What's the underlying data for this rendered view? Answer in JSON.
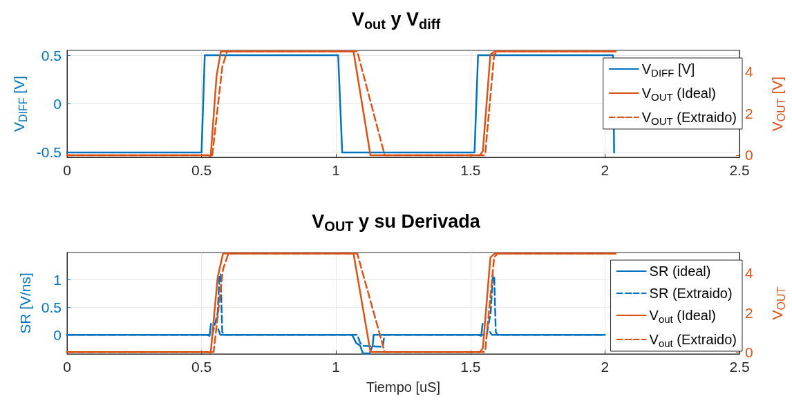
{
  "chart_data": [
    {
      "type": "line",
      "title": "V$_{out}$ y V$_{diff}$",
      "ylabel": "V$_{DIFF}$ [V]",
      "y2label": "V$_{OUT}$ [V]",
      "xlim": [
        0,
        2.5
      ],
      "xticks": [
        0,
        0.5,
        1,
        1.5,
        2,
        2.5
      ],
      "ylim": [
        -0.55,
        0.55
      ],
      "yticks": [
        -0.5,
        0,
        0.5
      ],
      "y2lim": [
        -0.1,
        5
      ],
      "y2ticks": [
        0,
        2,
        4
      ],
      "grid": true,
      "legend": "right",
      "series": [
        {
          "name": "V$_{DIFF}$ [V]",
          "color": "#0072bd",
          "axis": "y",
          "x": [
            0,
            0.5,
            0.512,
            1.008,
            1.023,
            1.515,
            1.528,
            2.03,
            2.034
          ],
          "values": [
            -0.5,
            -0.5,
            0.5,
            0.5,
            -0.5,
            -0.5,
            0.5,
            0.5,
            -0.5
          ]
        },
        {
          "name": "V$_{OUT}$ (Ideal)",
          "color": "#d95319",
          "axis": "y2",
          "x": [
            0,
            0.525,
            0.534,
            0.556,
            0.572,
            1.065,
            1.128,
            1.14,
            1.535,
            1.546,
            1.574,
            1.59,
            2.04
          ],
          "values": [
            0,
            0,
            -0.05,
            3.8,
            4.95,
            4.95,
            0,
            0,
            0,
            0.2,
            4.8,
            4.95,
            4.95
          ]
        },
        {
          "name": "V$_{OUT}$ (Extraido)",
          "color": "#d95319",
          "axis": "y2",
          "line_style": "dashed",
          "x": [
            0,
            0.53,
            0.54,
            0.577,
            0.595,
            1.079,
            1.181,
            1.19,
            1.55,
            1.555,
            1.588,
            1.6,
            2.04
          ],
          "values": [
            0,
            0,
            0,
            4.2,
            4.95,
            4.95,
            0,
            0,
            0,
            0.1,
            4.8,
            4.95,
            4.95
          ]
        }
      ]
    },
    {
      "type": "line",
      "title": "V$_{OUT}$ y su Derivada",
      "xlabel": "Tiempo [uS]",
      "ylabel": "SR [V/ns]",
      "y2label": "V$_{OUT}$",
      "xlim": [
        0,
        2.5
      ],
      "xticks": [
        0,
        0.5,
        1,
        1.5,
        2,
        2.5
      ],
      "ylim": [
        -0.35,
        1.5
      ],
      "yticks": [
        0,
        0.5,
        1
      ],
      "y2lim": [
        -0.1,
        5.05
      ],
      "y2ticks": [
        0,
        2,
        4
      ],
      "grid": true,
      "legend": "right",
      "series": [
        {
          "name": "SR (ideal)",
          "color": "#0072bd",
          "axis": "y",
          "x": [
            0,
            0.52,
            0.53,
            0.535,
            0.548,
            0.552,
            0.562,
            0.57,
            1.06,
            1.075,
            1.09,
            1.1,
            1.125,
            1.136,
            1.14,
            1.53,
            1.54,
            1.545,
            1.558,
            1.562,
            1.572,
            1.58,
            2.0
          ],
          "values": [
            0,
            0,
            -0.02,
            0.2,
            null,
            null,
            0.1,
            0,
            0,
            -0.15,
            -0.2,
            -0.34,
            -0.34,
            -0.2,
            0,
            0,
            -0.02,
            0.2,
            null,
            null,
            0.05,
            0,
            0
          ]
        },
        {
          "name": "SR (Extraido)",
          "color": "#0072bd",
          "axis": "y",
          "line_style": "dashed",
          "x": [
            0,
            0.54,
            0.56,
            0.567,
            0.571,
            0.577,
            0.585,
            1.079,
            1.09,
            1.1,
            1.174,
            1.18,
            1.19,
            1.56,
            1.575,
            1.583,
            1.588,
            1.594,
            1.6,
            2.0
          ],
          "values": [
            0,
            0,
            0.4,
            1.1,
            1.1,
            0.05,
            0,
            0,
            -0.15,
            -0.2,
            -0.22,
            0,
            0,
            0,
            0.4,
            1.08,
            1.08,
            0.05,
            0,
            0
          ]
        },
        {
          "name": "V$_{out}$ (Ideal)",
          "color": "#d95319",
          "axis": "y2",
          "x": [
            0,
            0.525,
            0.534,
            0.56,
            0.58,
            1.065,
            1.128,
            1.14,
            1.535,
            1.546,
            1.574,
            1.59,
            2.04
          ],
          "values": [
            0,
            0,
            -0.05,
            3.8,
            5,
            5,
            0,
            0,
            0,
            0.2,
            4.8,
            5,
            5
          ]
        },
        {
          "name": "V$_{out}$ (Extraido)",
          "color": "#d95319",
          "axis": "y2",
          "line_style": "dashed",
          "x": [
            0,
            0.53,
            0.545,
            0.58,
            0.6,
            1.079,
            1.181,
            1.19,
            1.55,
            1.555,
            1.588,
            1.6,
            2.04
          ],
          "values": [
            0,
            0,
            0,
            4.2,
            5,
            5,
            0,
            0,
            0,
            0.1,
            4.8,
            5,
            5
          ]
        }
      ]
    }
  ]
}
